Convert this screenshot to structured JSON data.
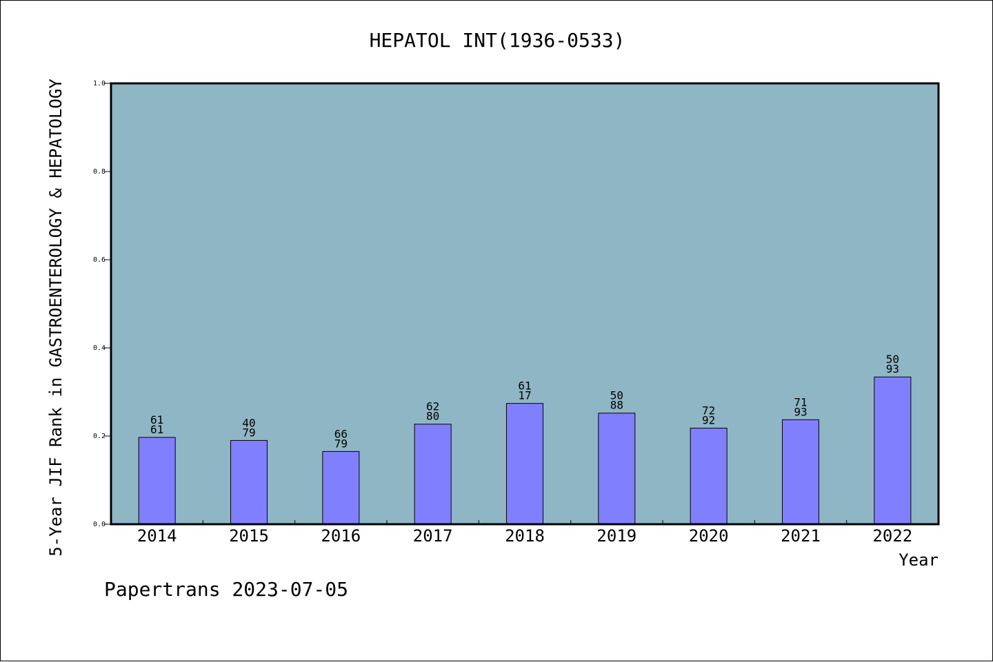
{
  "chart_data": {
    "type": "bar",
    "title": "HEPATOL INT(1936-0533)",
    "xlabel": "Year",
    "ylabel": "5-Year JIF Rank in GASTROENTEROLOGY & HEPATOLOGY",
    "ylim": [
      0,
      1.0
    ],
    "yticks": [
      "0.0",
      "0.2",
      "0.4",
      "0.6",
      "0.8",
      "1.0"
    ],
    "categories": [
      "2014",
      "2015",
      "2016",
      "2017",
      "2018",
      "2019",
      "2020",
      "2021",
      "2022"
    ],
    "values": [
      0.197,
      0.19,
      0.165,
      0.227,
      0.274,
      0.252,
      0.218,
      0.237,
      0.334
    ],
    "rank": [
      "61",
      "40",
      "66",
      "62",
      "61",
      "50",
      "72",
      "71",
      "50"
    ],
    "total": [
      "61",
      "79",
      "79",
      "80",
      "17",
      "88",
      "92",
      "93",
      "93"
    ],
    "grid": false,
    "legend": "none",
    "colors": {
      "plot_background": "#8fb6c4",
      "bar_fill": "#8080ff",
      "bar_stroke": "#000000"
    }
  },
  "footer": "Papertrans 2023-07-05"
}
